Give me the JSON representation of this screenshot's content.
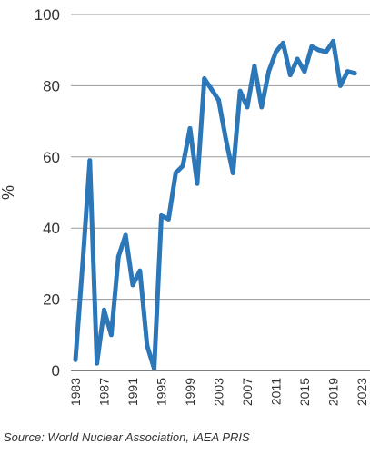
{
  "source": "Source: World Nuclear Association, IAEA PRIS",
  "chart_data": {
    "type": "line",
    "title": "",
    "xlabel": "",
    "ylabel": "%",
    "ylim": [
      0,
      100
    ],
    "yticks": [
      0,
      20,
      40,
      60,
      80,
      100
    ],
    "xlim": [
      1983,
      2023
    ],
    "xticks": [
      1983,
      1987,
      1991,
      1995,
      1999,
      2003,
      2007,
      2011,
      2015,
      2019,
      2023
    ],
    "grid": "horizontal",
    "legend": "none",
    "line_color": "#2b77b8",
    "grid_color": "#9a9a9a",
    "series": [
      {
        "x": [
          1983,
          1984,
          1985,
          1986,
          1987,
          1988,
          1989,
          1990,
          1991,
          1992,
          1993,
          1994,
          1995,
          1996,
          1997,
          1998,
          1999,
          2000,
          2001,
          2002,
          2003,
          2004,
          2005,
          2006,
          2007,
          2008,
          2009,
          2010,
          2011,
          2012,
          2013,
          2014,
          2015,
          2016,
          2017,
          2018,
          2019,
          2020,
          2021,
          2022
        ],
        "values": [
          3,
          30,
          59,
          2,
          17,
          10,
          32,
          38,
          24,
          28,
          7,
          0.5,
          43.5,
          42.5,
          55.5,
          57.5,
          68,
          52.5,
          82,
          79,
          76,
          65,
          55.5,
          78.5,
          74,
          85.5,
          74,
          84,
          89.5,
          92,
          83,
          87.5,
          84,
          91,
          90,
          89.5,
          92.5,
          80,
          84,
          83.5
        ]
      }
    ]
  }
}
